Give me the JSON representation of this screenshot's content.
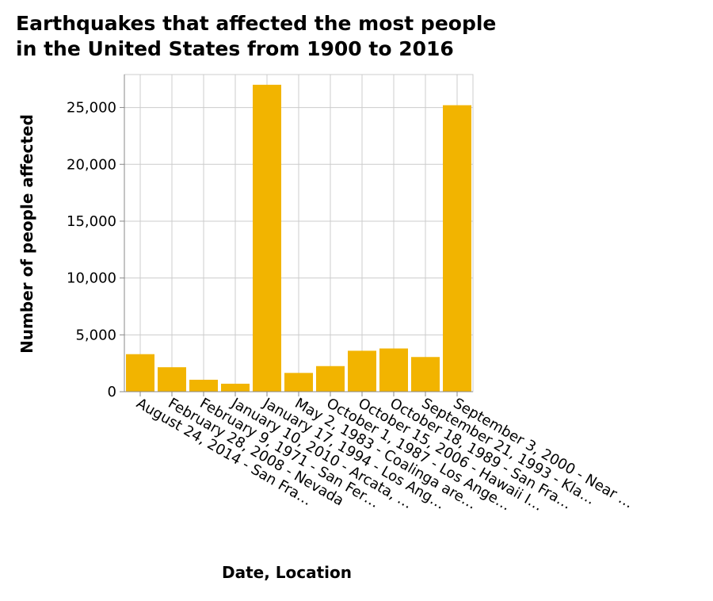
{
  "chart_data": {
    "type": "bar",
    "title_lines": [
      "Earthquakes that affected the most people",
      "in the United States from 1900 to 2016"
    ],
    "xlabel": "Date, Location",
    "ylabel": "Number of people affected",
    "categories": [
      "August 24, 2014 - San Fra…",
      "February 28, 2008 - Nevada",
      "February 9, 1971 - San Fer…",
      "January 10, 2010 - Arcata, …",
      "January 17, 1994 - Los Ang…",
      "May 2, 1983 - Coalinga are…",
      "October 1, 1987 - Los Ange…",
      "October 15, 2006 - Hawaii I…",
      "October 18, 1989 - San Fra…",
      "September 21, 1993 - Kla…",
      "September 3, 2000 - Near …"
    ],
    "values": [
      3300,
      2150,
      1050,
      700,
      27000,
      1650,
      2250,
      3600,
      3800,
      3050,
      25200
    ],
    "ylim": [
      0,
      27900
    ],
    "yticks": [
      0,
      5000,
      10000,
      15000,
      20000,
      25000
    ],
    "ytick_labels": [
      "0",
      "5,000",
      "10,000",
      "15,000",
      "20,000",
      "25,000"
    ],
    "bar_color": "#f2b400",
    "grid": true
  }
}
